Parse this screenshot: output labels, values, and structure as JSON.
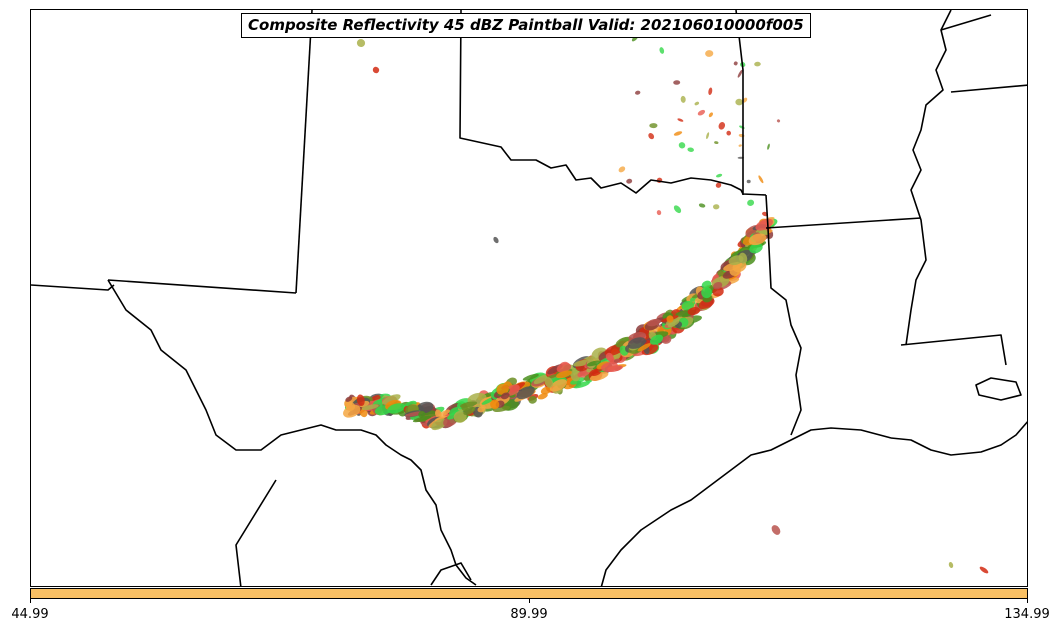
{
  "title": "Composite Reflectivity 45 dBZ Paintball Valid: 202106010000f005",
  "colorbar": {
    "color": "#f9c064",
    "ticks": [
      "44.99",
      "89.99",
      "134.99"
    ]
  },
  "map": {
    "boundary_color": "#000000",
    "paintball_colors": [
      "#d22a12",
      "#f08a0c",
      "#f5a742",
      "#4a8f1d",
      "#6b8e23",
      "#a9b04a",
      "#8c3b3b",
      "#b8534e",
      "#e85a50",
      "#34d84a",
      "#555555"
    ]
  }
}
